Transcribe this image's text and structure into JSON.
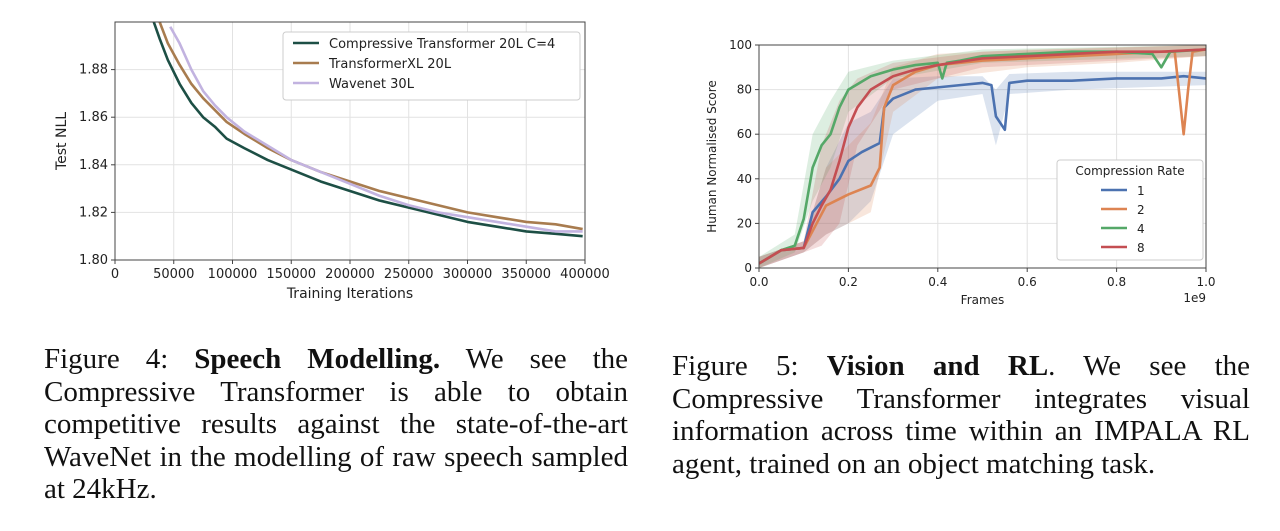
{
  "chart_data": [
    {
      "type": "line",
      "title": "",
      "xlabel": "Training Iterations",
      "ylabel": "Test NLL",
      "xlim": [
        0,
        400000
      ],
      "ylim": [
        1.8,
        1.9
      ],
      "grid": true,
      "legend_position": "top-right",
      "xticks": [
        0,
        50000,
        100000,
        150000,
        200000,
        250000,
        300000,
        350000,
        400000
      ],
      "xtick_labels": [
        "0",
        "50000",
        "100000",
        "150000",
        "200000",
        "250000",
        "300000",
        "350000",
        "400000"
      ],
      "yticks": [
        1.8,
        1.82,
        1.84,
        1.86,
        1.88
      ],
      "ytick_labels": [
        "1.80",
        "1.82",
        "1.84",
        "1.86",
        "1.88"
      ],
      "series": [
        {
          "name": "Compressive Transformer 20L C=4",
          "color": "#1d4f45",
          "x": [
            33000,
            38000,
            45000,
            55000,
            65000,
            75000,
            85000,
            95000,
            110000,
            130000,
            150000,
            175000,
            200000,
            225000,
            250000,
            275000,
            300000,
            325000,
            350000,
            375000,
            398000
          ],
          "y": [
            1.9,
            1.893,
            1.884,
            1.874,
            1.866,
            1.86,
            1.856,
            1.851,
            1.847,
            1.842,
            1.838,
            1.833,
            1.829,
            1.825,
            1.822,
            1.819,
            1.816,
            1.814,
            1.812,
            1.811,
            1.81
          ]
        },
        {
          "name": "TransformerXL 20L",
          "color": "#a87c4f",
          "x": [
            38000,
            45000,
            55000,
            65000,
            75000,
            85000,
            95000,
            110000,
            130000,
            150000,
            175000,
            200000,
            225000,
            250000,
            275000,
            300000,
            325000,
            350000,
            375000,
            398000
          ],
          "y": [
            1.9,
            1.891,
            1.882,
            1.874,
            1.868,
            1.863,
            1.858,
            1.853,
            1.847,
            1.842,
            1.837,
            1.833,
            1.829,
            1.826,
            1.823,
            1.82,
            1.818,
            1.816,
            1.815,
            1.813
          ]
        },
        {
          "name": "Wavenet 30L",
          "color": "#c2b3e0",
          "x": [
            47000,
            55000,
            65000,
            75000,
            85000,
            95000,
            110000,
            130000,
            150000,
            175000,
            200000,
            225000,
            250000,
            275000,
            300000,
            325000,
            350000,
            375000,
            398000
          ],
          "y": [
            1.898,
            1.891,
            1.88,
            1.871,
            1.865,
            1.86,
            1.854,
            1.848,
            1.842,
            1.837,
            1.832,
            1.827,
            1.823,
            1.82,
            1.818,
            1.816,
            1.814,
            1.812,
            1.812
          ]
        }
      ]
    },
    {
      "type": "line",
      "title": "",
      "xlabel": "Frames",
      "ylabel": "Human Normalised Score",
      "x_offset_label": "1e9",
      "xlim": [
        0,
        1.0
      ],
      "ylim": [
        0,
        100
      ],
      "grid": true,
      "legend_position": "lower-right",
      "legend_title": "Compression Rate",
      "xticks": [
        0,
        0.2,
        0.4,
        0.6,
        0.8,
        1.0
      ],
      "xtick_labels": [
        "0.0",
        "0.2",
        "0.4",
        "0.6",
        "0.8",
        "1.0"
      ],
      "yticks": [
        0,
        20,
        40,
        60,
        80,
        100
      ],
      "ytick_labels": [
        "0",
        "20",
        "40",
        "60",
        "80",
        "100"
      ],
      "series": [
        {
          "name": "1",
          "color": "#4c72b0",
          "x": [
            0,
            0.05,
            0.1,
            0.12,
            0.15,
            0.18,
            0.2,
            0.23,
            0.26,
            0.27,
            0.28,
            0.3,
            0.35,
            0.4,
            0.45,
            0.5,
            0.52,
            0.53,
            0.54,
            0.55,
            0.56,
            0.6,
            0.7,
            0.8,
            0.9,
            0.95,
            1.0
          ],
          "y": [
            2,
            8,
            9,
            25,
            32,
            40,
            48,
            52,
            55,
            56,
            72,
            76,
            80,
            81,
            82,
            83,
            82,
            68,
            65,
            62,
            83,
            84,
            84,
            85,
            85,
            86,
            85
          ],
          "band_x": [
            0,
            0.1,
            0.15,
            0.2,
            0.25,
            0.3,
            0.4,
            0.5,
            0.53,
            0.56,
            0.7,
            1.0
          ],
          "band_lo": [
            0,
            7,
            15,
            20,
            30,
            60,
            75,
            78,
            55,
            78,
            80,
            82
          ],
          "band_hi": [
            5,
            12,
            45,
            65,
            70,
            85,
            86,
            86,
            80,
            87,
            88,
            88
          ]
        },
        {
          "name": "2",
          "color": "#dd8452",
          "x": [
            0,
            0.05,
            0.1,
            0.15,
            0.2,
            0.25,
            0.27,
            0.28,
            0.3,
            0.35,
            0.4,
            0.5,
            0.6,
            0.7,
            0.8,
            0.9,
            0.93,
            0.95,
            0.96,
            0.97,
            1.0
          ],
          "y": [
            2,
            8,
            9,
            28,
            33,
            37,
            45,
            72,
            82,
            88,
            91,
            93,
            94,
            95,
            96,
            97,
            97,
            60,
            80,
            97,
            98
          ],
          "band_x": [
            0,
            0.1,
            0.15,
            0.2,
            0.25,
            0.3,
            0.4,
            0.6,
            0.8,
            1.0
          ],
          "band_lo": [
            0,
            7,
            15,
            20,
            25,
            70,
            85,
            90,
            92,
            95
          ],
          "band_hi": [
            5,
            12,
            45,
            55,
            65,
            90,
            96,
            98,
            99,
            100
          ]
        },
        {
          "name": "4",
          "color": "#55a868",
          "x": [
            0,
            0.05,
            0.08,
            0.1,
            0.12,
            0.14,
            0.16,
            0.18,
            0.2,
            0.25,
            0.3,
            0.35,
            0.4,
            0.41,
            0.42,
            0.45,
            0.5,
            0.6,
            0.7,
            0.8,
            0.88,
            0.9,
            0.92,
            1.0
          ],
          "y": [
            2,
            8,
            10,
            22,
            45,
            55,
            60,
            72,
            80,
            86,
            89,
            91,
            92,
            85,
            92,
            93,
            95,
            96,
            97,
            97,
            96,
            90,
            97,
            98
          ],
          "band_x": [
            0,
            0.08,
            0.12,
            0.16,
            0.2,
            0.3,
            0.5,
            1.0
          ],
          "band_lo": [
            0,
            7,
            30,
            45,
            70,
            85,
            92,
            95
          ],
          "band_hi": [
            5,
            15,
            60,
            75,
            88,
            93,
            98,
            100
          ]
        },
        {
          "name": "8",
          "color": "#c44e52",
          "x": [
            0,
            0.05,
            0.1,
            0.12,
            0.14,
            0.16,
            0.18,
            0.2,
            0.22,
            0.25,
            0.3,
            0.35,
            0.4,
            0.5,
            0.6,
            0.7,
            0.8,
            0.9,
            1.0
          ],
          "y": [
            2,
            8,
            9,
            20,
            28,
            35,
            48,
            63,
            72,
            80,
            86,
            89,
            91,
            94,
            95,
            96,
            97,
            97,
            98
          ],
          "band_x": [
            0,
            0.1,
            0.14,
            0.18,
            0.22,
            0.3,
            0.5,
            1.0
          ],
          "band_lo": [
            0,
            7,
            10,
            20,
            55,
            80,
            90,
            95
          ],
          "band_hi": [
            5,
            12,
            55,
            75,
            85,
            92,
            97,
            100
          ]
        }
      ]
    }
  ],
  "caption_left": {
    "prefix": "Figure 4: ",
    "bold": "Speech Modelling.",
    "text": " We see the Compressive Transformer is able to obtain competitive results against the state-of-the-art WaveNet in the modelling of raw speech sampled at 24kHz."
  },
  "caption_right": {
    "prefix": "Figure 5: ",
    "bold": "Vision and RL",
    "text": ". We see the Compressive Transformer integrates visual information across time within an IMPALA RL agent, trained on an object matching task."
  }
}
